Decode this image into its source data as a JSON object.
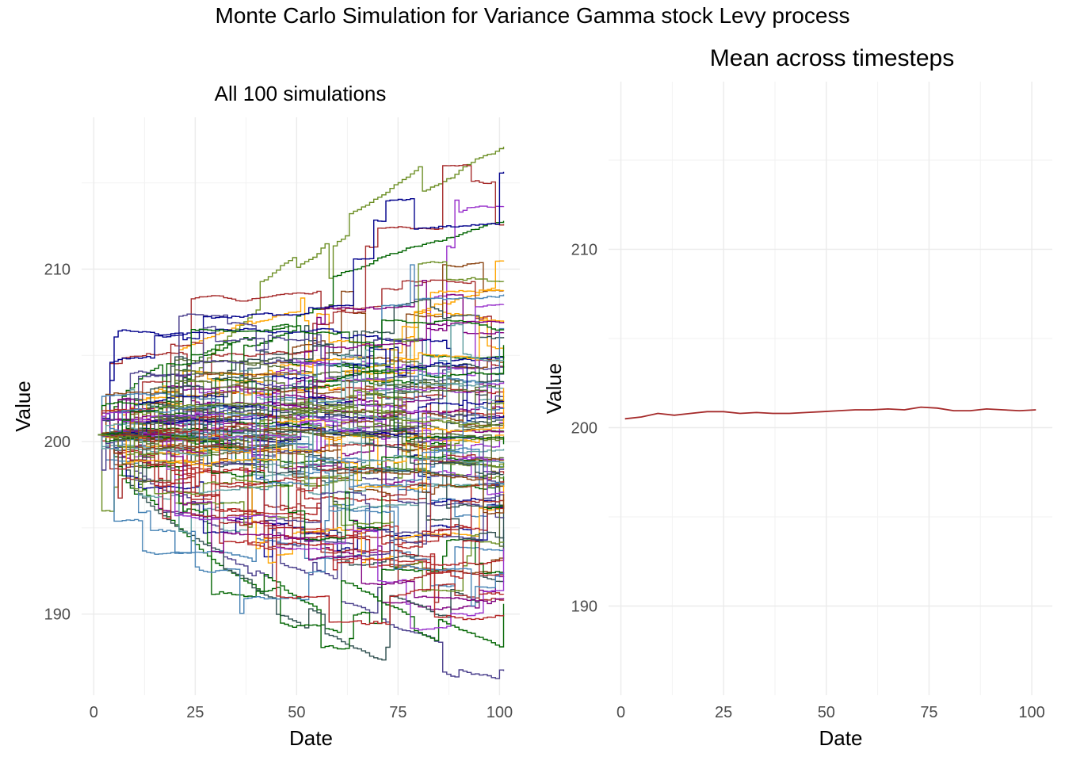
{
  "figure_title": "Monte Carlo Simulation for Variance Gamma stock Levy process",
  "chart_data": [
    {
      "type": "line",
      "title": "All 100 simulations",
      "xlabel": "Date",
      "ylabel": "Value",
      "xlim": [
        -3,
        105
      ],
      "ylim": [
        185.3,
        218.8
      ],
      "x_ticks": [
        0,
        25,
        50,
        75,
        100
      ],
      "y_ticks": [
        190,
        200,
        210
      ],
      "grid": true,
      "legend": "none",
      "series_count": 100,
      "x_range": [
        1,
        101
      ],
      "start_value": 200.4,
      "series_final_values_highlighted": [
        {
          "color": "#6b8e23",
          "final": 217.1
        },
        {
          "color": "#006400",
          "final": 212.8
        },
        {
          "color": "#ffa500",
          "final": 210.5
        },
        {
          "color": "#483d8b",
          "final": 186.7
        },
        {
          "color": "#006400",
          "final": 190.6
        },
        {
          "color": "#800080",
          "final": 192.2
        },
        {
          "color": "#2f4f4f",
          "final": 191.9
        }
      ],
      "colors": [
        "#006400",
        "#6b8e23",
        "#ffa500",
        "#a52a2a",
        "#800080",
        "#00008b",
        "#483d8b",
        "#5f9ea0",
        "#9932cc",
        "#2f4f4f",
        "#8b4513",
        "#b22222",
        "#556b2f",
        "#4682b4"
      ]
    },
    {
      "type": "line",
      "title": "Mean across timesteps",
      "xlabel": "Date",
      "ylabel": "Value",
      "xlim": [
        -3,
        105
      ],
      "ylim": [
        185,
        219.4
      ],
      "x_ticks": [
        0,
        25,
        50,
        75,
        100
      ],
      "y_ticks": [
        190,
        200,
        210
      ],
      "grid": true,
      "legend": "none",
      "series": [
        {
          "color": "#a52a2a",
          "x": [
            1,
            5,
            9,
            13,
            17,
            21,
            25,
            29,
            33,
            37,
            41,
            45,
            49,
            53,
            57,
            61,
            65,
            69,
            73,
            77,
            81,
            85,
            89,
            93,
            97,
            101
          ],
          "values": [
            200.5,
            200.6,
            200.8,
            200.7,
            200.8,
            200.9,
            200.9,
            200.8,
            200.85,
            200.8,
            200.8,
            200.85,
            200.9,
            200.95,
            201.0,
            201.0,
            201.05,
            201.0,
            201.15,
            201.1,
            200.95,
            200.95,
            201.05,
            201.0,
            200.95,
            201.0
          ]
        }
      ]
    }
  ]
}
